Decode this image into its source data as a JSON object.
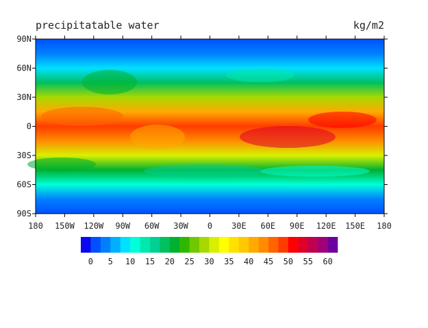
{
  "header": {
    "title": "precipitatable water",
    "units": "kg/m2"
  },
  "map": {
    "lat_labels": [
      "90N",
      "60N",
      "30N",
      "0",
      "30S",
      "60S",
      "90S"
    ],
    "lon_labels": [
      "180",
      "150W",
      "120W",
      "90W",
      "60W",
      "30W",
      "0",
      "30E",
      "60E",
      "90E",
      "120E",
      "150E",
      "180"
    ]
  },
  "colorbar": {
    "colors": [
      "#0a0af0",
      "#0050ff",
      "#0080ff",
      "#00b0ff",
      "#00e0ff",
      "#00ffd8",
      "#00e8b0",
      "#00d090",
      "#00c060",
      "#00b030",
      "#30b800",
      "#70c800",
      "#a8d800",
      "#d8f000",
      "#ffff00",
      "#ffe000",
      "#ffc800",
      "#ffaa00",
      "#ff8c00",
      "#ff6400",
      "#ff3c00",
      "#ff0000",
      "#e00028",
      "#c00050",
      "#a00078",
      "#6a00a0"
    ],
    "labels": [
      0,
      5,
      10,
      15,
      20,
      25,
      30,
      35,
      40,
      45,
      50,
      55,
      60
    ]
  }
}
